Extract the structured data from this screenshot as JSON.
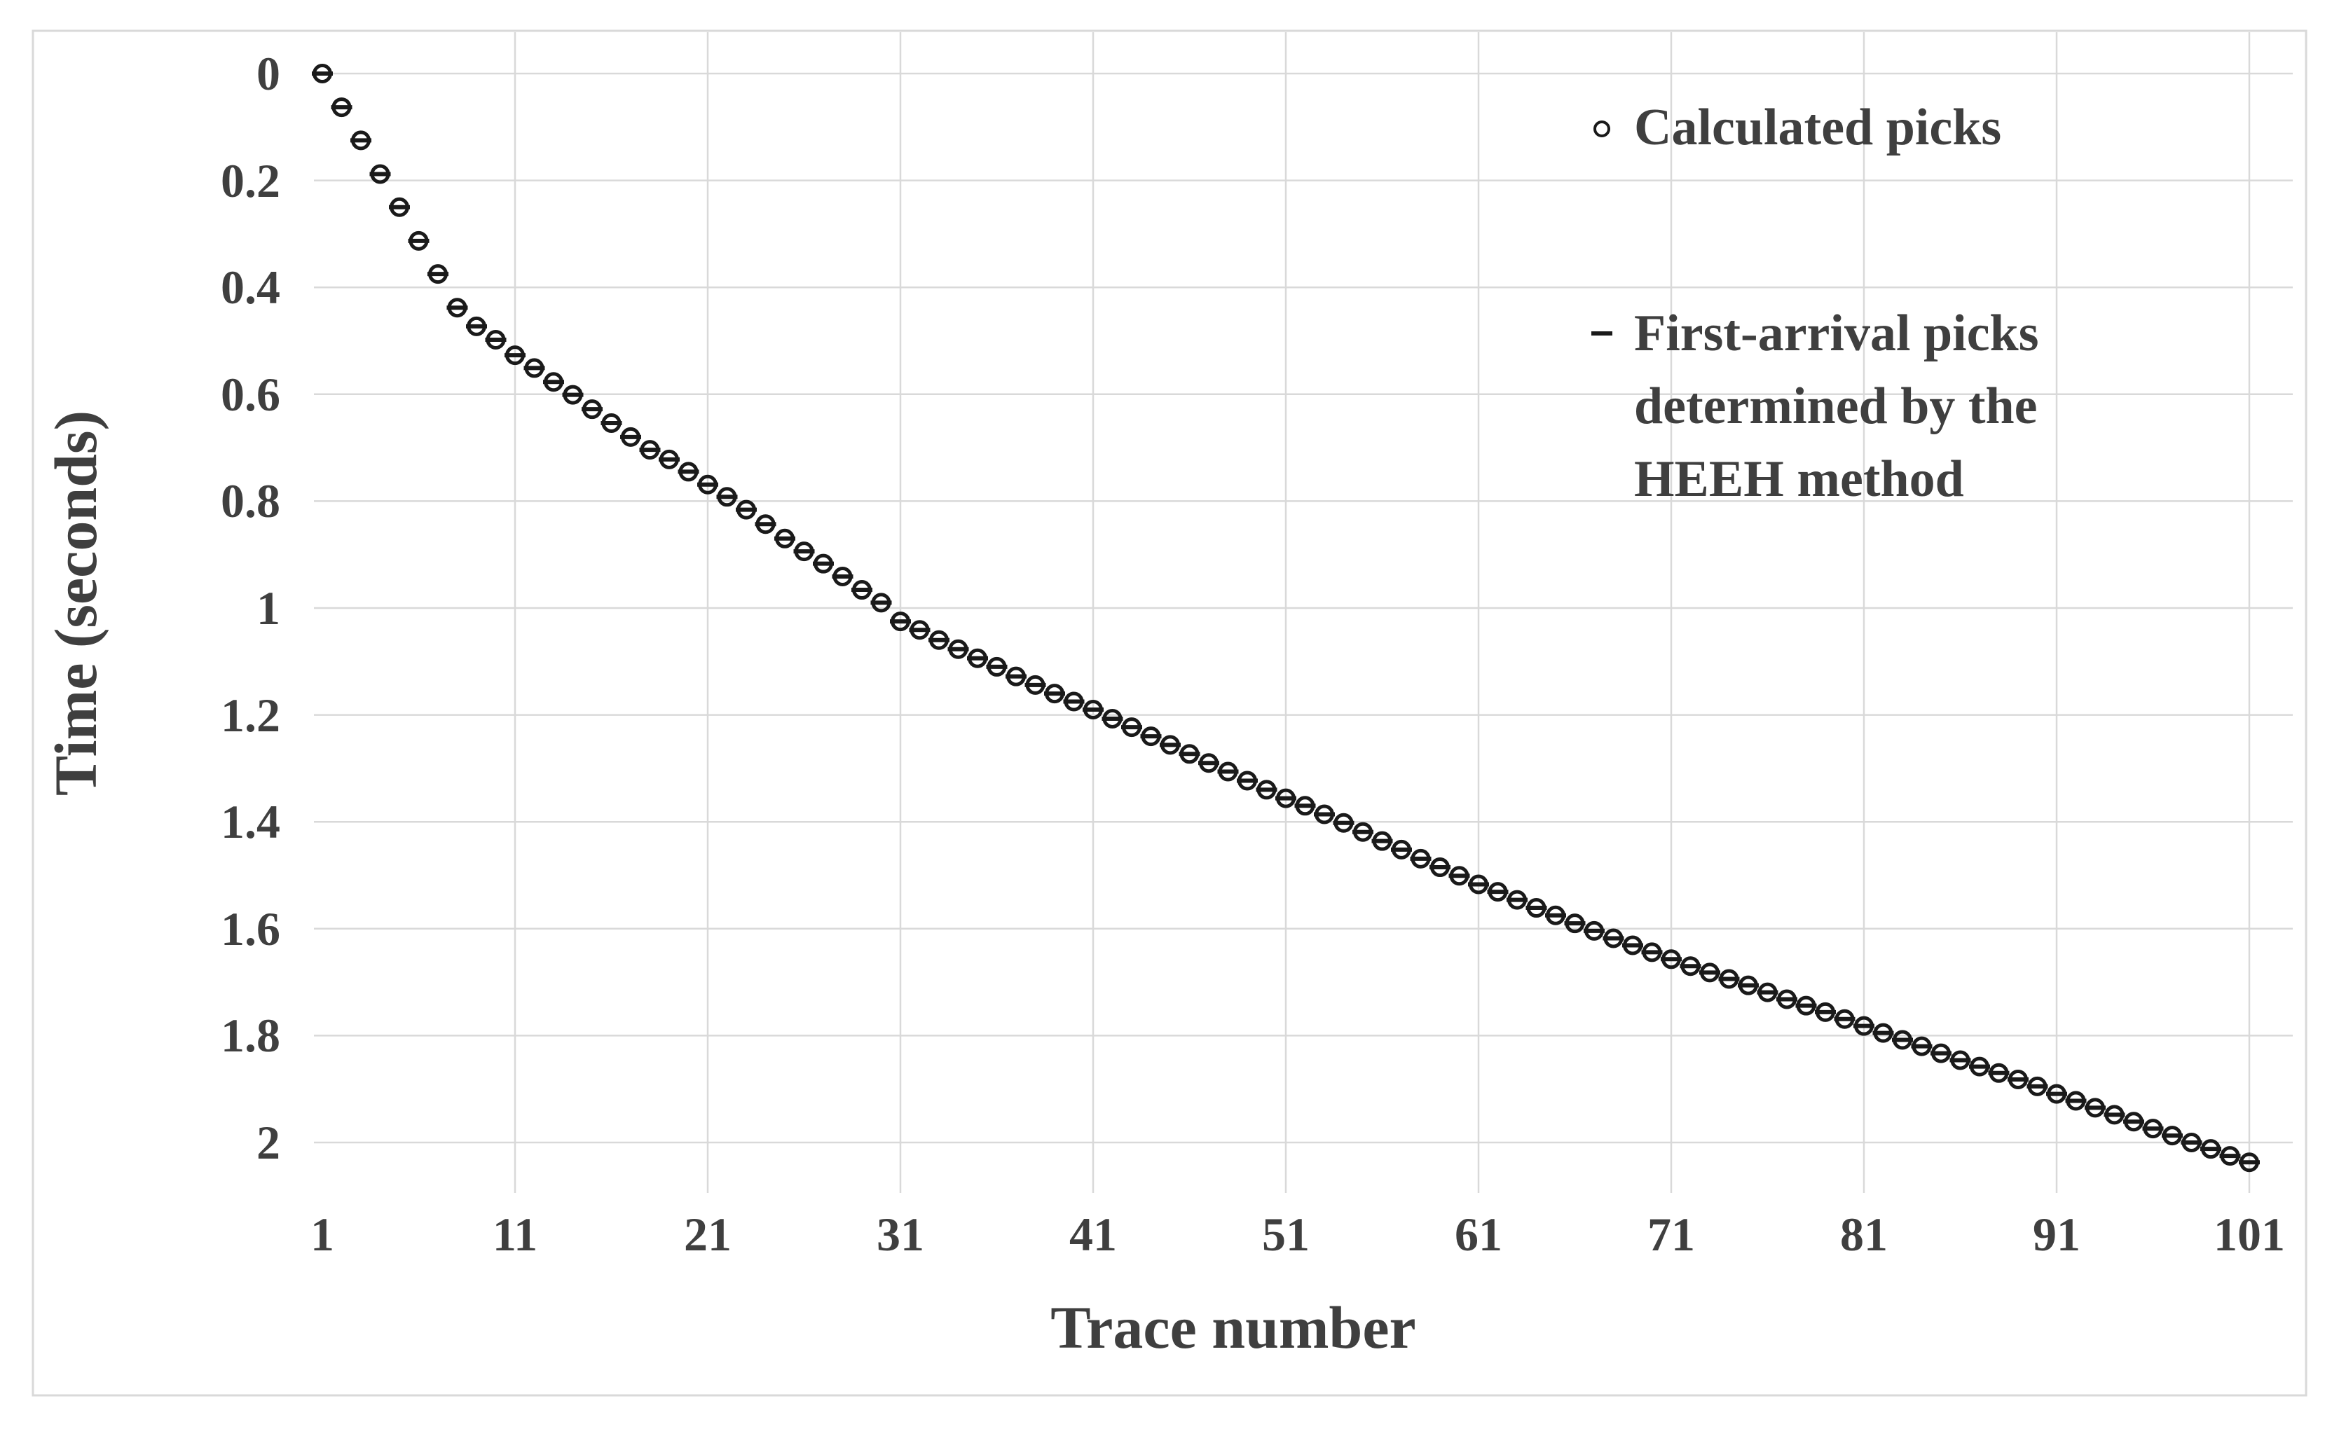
{
  "chart_data": {
    "type": "scatter",
    "title": "",
    "xlabel": "Trace number",
    "ylabel": "Time (seconds)",
    "x_ticks": [
      "1",
      "11",
      "21",
      "31",
      "41",
      "51",
      "61",
      "71",
      "81",
      "91",
      "101"
    ],
    "y_ticks": [
      "0",
      "0.2",
      "0.4",
      "0.6",
      "0.8",
      "1",
      "1.2",
      "1.4",
      "1.6",
      "1.8",
      "2"
    ],
    "x_range": [
      1,
      101
    ],
    "y_range": [
      0,
      2.1
    ],
    "y_axis_reversed": true,
    "grid": true,
    "legend_position": "upper-right",
    "colors": {
      "marker": "#1a1a1a",
      "grid": "#d9d9d9",
      "border": "#d9d9d9",
      "text": "#3f3f3f",
      "background": "#ffffff"
    },
    "x": [
      1,
      2,
      3,
      4,
      5,
      6,
      7,
      8,
      9,
      10,
      11,
      12,
      13,
      14,
      15,
      16,
      17,
      18,
      19,
      20,
      21,
      22,
      23,
      24,
      25,
      26,
      27,
      28,
      29,
      30,
      31,
      32,
      33,
      34,
      35,
      36,
      37,
      38,
      39,
      40,
      41,
      42,
      43,
      44,
      45,
      46,
      47,
      48,
      49,
      50,
      51,
      52,
      53,
      54,
      55,
      56,
      57,
      58,
      59,
      60,
      61,
      62,
      63,
      64,
      65,
      66,
      67,
      68,
      69,
      70,
      71,
      72,
      73,
      74,
      75,
      76,
      77,
      78,
      79,
      80,
      81,
      82,
      83,
      84,
      85,
      86,
      87,
      88,
      89,
      90,
      91,
      92,
      93,
      94,
      95,
      96,
      97,
      98,
      99,
      100,
      101
    ],
    "series": [
      {
        "name": "Calculated picks",
        "marker": "open-circle",
        "values": [
          0.0,
          0.063,
          0.125,
          0.188,
          0.25,
          0.313,
          0.375,
          0.438,
          0.473,
          0.498,
          0.527,
          0.551,
          0.577,
          0.601,
          0.628,
          0.654,
          0.68,
          0.704,
          0.722,
          0.745,
          0.769,
          0.792,
          0.816,
          0.843,
          0.87,
          0.894,
          0.917,
          0.941,
          0.966,
          0.99,
          1.025,
          1.041,
          1.06,
          1.077,
          1.094,
          1.11,
          1.128,
          1.144,
          1.16,
          1.175,
          1.19,
          1.207,
          1.223,
          1.24,
          1.256,
          1.273,
          1.29,
          1.306,
          1.323,
          1.34,
          1.356,
          1.37,
          1.386,
          1.402,
          1.419,
          1.436,
          1.452,
          1.469,
          1.485,
          1.501,
          1.517,
          1.531,
          1.546,
          1.561,
          1.575,
          1.59,
          1.604,
          1.618,
          1.631,
          1.644,
          1.657,
          1.67,
          1.682,
          1.694,
          1.706,
          1.719,
          1.732,
          1.744,
          1.756,
          1.769,
          1.782,
          1.795,
          1.808,
          1.82,
          1.833,
          1.846,
          1.858,
          1.87,
          1.882,
          1.895,
          1.909,
          1.922,
          1.935,
          1.948,
          1.961,
          1.974,
          1.987,
          2.0,
          2.012,
          2.025,
          2.037
        ]
      },
      {
        "name": "First-arrival picks determined by the HEEH method",
        "marker": "dash",
        "values": [
          0.0,
          0.063,
          0.125,
          0.188,
          0.25,
          0.313,
          0.375,
          0.438,
          0.473,
          0.498,
          0.527,
          0.551,
          0.577,
          0.601,
          0.628,
          0.654,
          0.68,
          0.704,
          0.722,
          0.745,
          0.769,
          0.792,
          0.816,
          0.843,
          0.87,
          0.894,
          0.917,
          0.941,
          0.966,
          0.99,
          1.025,
          1.041,
          1.06,
          1.077,
          1.094,
          1.11,
          1.128,
          1.144,
          1.16,
          1.175,
          1.19,
          1.207,
          1.223,
          1.24,
          1.256,
          1.273,
          1.29,
          1.306,
          1.323,
          1.34,
          1.356,
          1.37,
          1.386,
          1.402,
          1.419,
          1.436,
          1.452,
          1.469,
          1.485,
          1.501,
          1.517,
          1.531,
          1.546,
          1.561,
          1.575,
          1.59,
          1.604,
          1.618,
          1.631,
          1.644,
          1.657,
          1.67,
          1.682,
          1.694,
          1.706,
          1.719,
          1.732,
          1.744,
          1.756,
          1.769,
          1.782,
          1.795,
          1.808,
          1.82,
          1.833,
          1.846,
          1.858,
          1.87,
          1.882,
          1.895,
          1.909,
          1.922,
          1.935,
          1.948,
          1.961,
          1.974,
          1.987,
          2.0,
          2.012,
          2.025,
          2.037
        ]
      }
    ]
  },
  "legend": {
    "items": [
      {
        "label": "Calculated picks"
      },
      {
        "label": "First-arrival picks determined by the HEEH method"
      }
    ]
  }
}
